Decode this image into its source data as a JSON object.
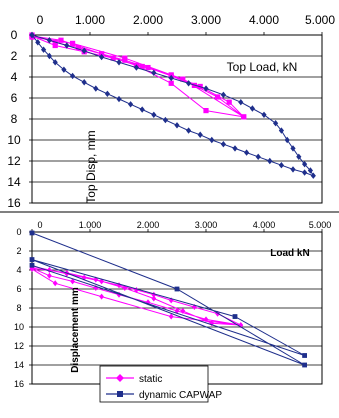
{
  "chart_data": [
    {
      "type": "line",
      "xlabel": "Top Load, kN",
      "ylabel": "Top Disp, mm",
      "x_ticks": [
        "0",
        "1.000",
        "2.000",
        "3.000",
        "4.000",
        "5.000"
      ],
      "y_ticks": [
        "0",
        "2",
        "4",
        "6",
        "8",
        "10",
        "12",
        "14",
        "16"
      ],
      "xlim": [
        0,
        5000
      ],
      "ylim": [
        0,
        16
      ],
      "grid": "horizontal",
      "series": [
        {
          "color": "#ff00ff",
          "marker": "square",
          "points": [
            [
              0,
              0
            ],
            [
              400,
              0.7
            ],
            [
              800,
              1.2
            ],
            [
              1200,
              1.8
            ],
            [
              1600,
              2.4
            ],
            [
              2000,
              3.1
            ],
            [
              2400,
              3.9
            ],
            [
              2800,
              4.8
            ],
            [
              3200,
              5.9
            ],
            [
              3650,
              7.8
            ],
            [
              3000,
              7.2
            ],
            [
              2400,
              4.6
            ],
            [
              1800,
              2.9
            ],
            [
              1200,
              1.8
            ],
            [
              500,
              0.5
            ],
            [
              0,
              0.1
            ],
            [
              400,
              1.0
            ],
            [
              900,
              1.6
            ],
            [
              1400,
              2.2
            ],
            [
              1900,
              3.0
            ],
            [
              2400,
              3.8
            ],
            [
              2900,
              4.9
            ],
            [
              3400,
              6.4
            ],
            [
              3650,
              7.8
            ],
            [
              2600,
              4.2
            ],
            [
              1600,
              2.2
            ],
            [
              700,
              0.8
            ],
            [
              0,
              0.2
            ]
          ]
        },
        {
          "color": "#1f2f8c",
          "marker": "diamond",
          "points": [
            [
              0,
              0
            ],
            [
              100,
              0.7
            ],
            [
              200,
              1.4
            ],
            [
              300,
              2.0
            ],
            [
              400,
              2.6
            ],
            [
              550,
              3.3
            ],
            [
              700,
              3.9
            ],
            [
              900,
              4.5
            ],
            [
              1100,
              5.1
            ],
            [
              1300,
              5.6
            ],
            [
              1500,
              6.1
            ],
            [
              1700,
              6.6
            ],
            [
              1900,
              7.1
            ],
            [
              2100,
              7.6
            ],
            [
              2300,
              8.1
            ],
            [
              2500,
              8.6
            ],
            [
              2700,
              9.1
            ],
            [
              2900,
              9.5
            ],
            [
              3100,
              10.0
            ],
            [
              3300,
              10.4
            ],
            [
              3500,
              10.8
            ],
            [
              3700,
              11.2
            ],
            [
              3900,
              11.6
            ],
            [
              4100,
              12.0
            ],
            [
              4300,
              12.4
            ],
            [
              4500,
              12.8
            ],
            [
              4700,
              13.1
            ],
            [
              4850,
              13.4
            ],
            [
              4800,
              12.9
            ],
            [
              4700,
              12.3
            ],
            [
              4600,
              11.6
            ],
            [
              4500,
              10.8
            ],
            [
              4400,
              10.0
            ],
            [
              4300,
              9.1
            ],
            [
              4200,
              8.4
            ],
            [
              4000,
              7.6
            ],
            [
              3800,
              7.0
            ],
            [
              3600,
              6.4
            ],
            [
              3300,
              5.7
            ],
            [
              3000,
              5.1
            ],
            [
              2700,
              4.6
            ],
            [
              2400,
              4.1
            ],
            [
              2100,
              3.6
            ],
            [
              1800,
              3.1
            ],
            [
              1500,
              2.6
            ],
            [
              1200,
              2.1
            ],
            [
              900,
              1.5
            ],
            [
              600,
              1.0
            ],
            [
              300,
              0.5
            ],
            [
              0,
              0
            ]
          ]
        }
      ]
    },
    {
      "type": "line",
      "xlabel": "Load kN",
      "ylabel": "Displacement mm",
      "x_ticks": [
        "0",
        "1.000",
        "2.000",
        "3.000",
        "4.000",
        "5.000"
      ],
      "y_ticks": [
        "0",
        "2",
        "4",
        "6",
        "8",
        "10",
        "12",
        "14",
        "16"
      ],
      "xlim": [
        0,
        5000
      ],
      "ylim": [
        0,
        16
      ],
      "grid": "horizontal",
      "legend_position": "bottom-left",
      "series": [
        {
          "name": "static",
          "color": "#ff00ff",
          "marker": "diamond",
          "points": [
            [
              0,
              3.6
            ],
            [
              300,
              4.0
            ],
            [
              600,
              4.4
            ],
            [
              900,
              4.8
            ],
            [
              1200,
              5.2
            ],
            [
              1500,
              5.6
            ],
            [
              1800,
              6.1
            ],
            [
              2100,
              6.6
            ],
            [
              2400,
              7.2
            ],
            [
              2800,
              7.9
            ],
            [
              3200,
              8.6
            ],
            [
              3600,
              9.8
            ],
            [
              3100,
              9.6
            ],
            [
              2600,
              8.3
            ],
            [
              2100,
              7.0
            ],
            [
              1600,
              5.9
            ],
            [
              1100,
              5.0
            ],
            [
              600,
              4.3
            ],
            [
              0,
              3.8
            ],
            [
              300,
              4.6
            ],
            [
              700,
              5.2
            ],
            [
              1100,
              5.9
            ],
            [
              1500,
              6.6
            ],
            [
              2000,
              7.4
            ],
            [
              2500,
              8.3
            ],
            [
              3000,
              9.2
            ],
            [
              3600,
              9.8
            ],
            [
              2400,
              8.9
            ],
            [
              1200,
              6.8
            ],
            [
              400,
              5.4
            ],
            [
              0,
              3.9
            ]
          ]
        },
        {
          "name": "dynamic CAPWAP",
          "color": "#1f2f8c",
          "marker": "square",
          "points": [
            [
              0,
              0.1
            ],
            [
              2500,
              6.0
            ],
            [
              4700,
              14.0
            ],
            [
              0,
              2.9
            ],
            [
              3500,
              8.9
            ],
            [
              4700,
              13.0
            ],
            [
              0,
              3.5
            ]
          ]
        }
      ]
    }
  ]
}
